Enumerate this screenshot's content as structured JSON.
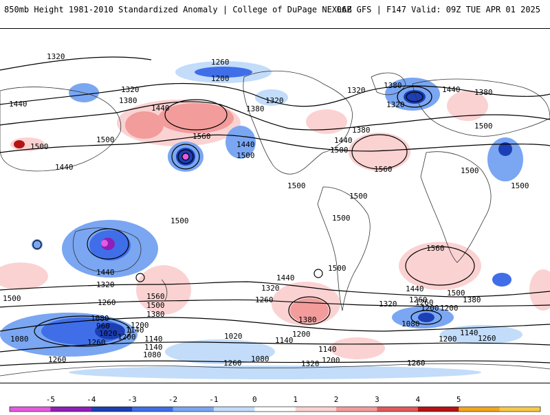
{
  "header": {
    "left_title": "850mb Height 1981-2010 Standardized Anomaly | College of DuPage NEXLAB",
    "right_title": "06Z GFS | F147 Valid: 09Z TUE APR 01 2025"
  },
  "contour_labels": [
    "1320",
    "1260",
    "1200",
    "1320",
    "1380",
    "1440",
    "1440",
    "1500",
    "1560",
    "1380",
    "1320",
    "1440",
    "1500",
    "1440",
    "1500",
    "1380",
    "1320",
    "1380",
    "1440",
    "1500",
    "1320",
    "1380",
    "1560",
    "1500",
    "1500",
    "1500",
    "1500",
    "1500",
    "1500",
    "1440",
    "1500",
    "1440",
    "1320",
    "1260",
    "1560",
    "1500",
    "1380",
    "1440",
    "1320",
    "1260",
    "1380",
    "1500",
    "1320",
    "1260",
    "1380",
    "1200",
    "1440",
    "1500",
    "1560",
    "1500",
    "1140",
    "1080",
    "1200",
    "960",
    "1020",
    "1260",
    "1080",
    "1140",
    "1200",
    "1140",
    "1080",
    "1260",
    "1020",
    "1140",
    "1200",
    "1140",
    "1080",
    "1200",
    "1260",
    "1200",
    "1140",
    "1260",
    "1260",
    "1080",
    "1320",
    "1200",
    "1260"
  ],
  "colorbar": {
    "ticks": [
      "-5",
      "-4",
      "-3",
      "-2",
      "-1",
      "0",
      "1",
      "2",
      "3",
      "4",
      "5"
    ],
    "colors": [
      "#e55be0",
      "#8e1fb8",
      "#1c3fb5",
      "#3f6ee8",
      "#7aa6f2",
      "#c2dcfa",
      "#ffffff",
      "#fbd2d2",
      "#f29c9c",
      "#e05a5a",
      "#b51414",
      "#f2a61e",
      "#f7c94a"
    ]
  }
}
